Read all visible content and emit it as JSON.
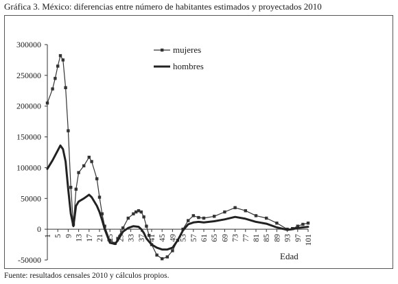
{
  "figure": {
    "title": "Gráfica 3. México: diferencias entre número de habitantes estimados y proyectados 2010",
    "source": "Fuente: resultados censales 2010 y cálculos propios."
  },
  "chart_data": {
    "type": "line",
    "xlabel": "Edad",
    "ylabel": "",
    "ylim": [
      -50000,
      300000
    ],
    "xlim": [
      1,
      101
    ],
    "y_ticks": [
      "300000",
      "250000",
      "200000",
      "150000",
      "100000",
      "50000",
      "0",
      "-50000"
    ],
    "x_ticks": [
      "1",
      "5",
      "9",
      "13",
      "17",
      "21",
      "25",
      "29",
      "33",
      "37",
      "41",
      "45",
      "49",
      "53",
      "57",
      "61",
      "65",
      "69",
      "73",
      "77",
      "81",
      "85",
      "89",
      "93",
      "97",
      "101"
    ],
    "legend": {
      "position": "top-center",
      "entries": [
        "mujeres",
        "hombres"
      ]
    },
    "series": [
      {
        "name": "mujeres",
        "style": "thin-line-square-markers",
        "color": "#333333",
        "x": [
          1,
          3,
          4,
          5,
          6,
          7,
          8,
          9,
          10,
          11,
          12,
          13,
          15,
          17,
          18,
          20,
          21,
          22,
          23,
          25,
          27,
          28,
          30,
          32,
          34,
          35,
          36,
          37,
          38,
          39,
          40,
          41,
          43,
          45,
          47,
          49,
          51,
          53,
          55,
          57,
          59,
          61,
          65,
          69,
          73,
          77,
          81,
          85,
          89,
          93,
          95,
          97,
          99,
          101
        ],
        "values": [
          205000,
          228000,
          245000,
          265000,
          282000,
          275000,
          230000,
          160000,
          68000,
          8000,
          65000,
          92000,
          103000,
          117000,
          110000,
          82000,
          52000,
          25000,
          5000,
          -18000,
          -23000,
          -15000,
          2000,
          18000,
          25000,
          28000,
          30000,
          28000,
          20000,
          5000,
          -10000,
          -25000,
          -42000,
          -48000,
          -45000,
          -35000,
          -18000,
          0,
          14000,
          22000,
          19000,
          18000,
          21000,
          28000,
          35000,
          30000,
          22000,
          18000,
          10000,
          0,
          1000,
          5000,
          8000,
          10000
        ]
      },
      {
        "name": "hombres",
        "style": "thick-line",
        "color": "#222222",
        "x": [
          1,
          3,
          5,
          6,
          7,
          8,
          9,
          10,
          11,
          12,
          13,
          15,
          17,
          18,
          20,
          21,
          22,
          23,
          25,
          27,
          28,
          30,
          32,
          34,
          36,
          37,
          38,
          39,
          41,
          43,
          45,
          47,
          49,
          51,
          53,
          55,
          57,
          59,
          61,
          65,
          69,
          73,
          77,
          81,
          85,
          89,
          93,
          95,
          97,
          99,
          101
        ],
        "values": [
          98000,
          112000,
          128000,
          136000,
          130000,
          110000,
          65000,
          25000,
          5000,
          38000,
          45000,
          50000,
          56000,
          52000,
          38000,
          28000,
          15000,
          0,
          -22000,
          -24000,
          -18000,
          -4000,
          2000,
          5000,
          4000,
          0,
          -6000,
          -15000,
          -25000,
          -30000,
          -33000,
          -33000,
          -30000,
          -18000,
          -2000,
          8000,
          11000,
          12000,
          11000,
          13000,
          16000,
          20000,
          17000,
          12000,
          9000,
          3000,
          -1000,
          0,
          2000,
          3000,
          4000
        ]
      }
    ],
    "grid": false
  }
}
